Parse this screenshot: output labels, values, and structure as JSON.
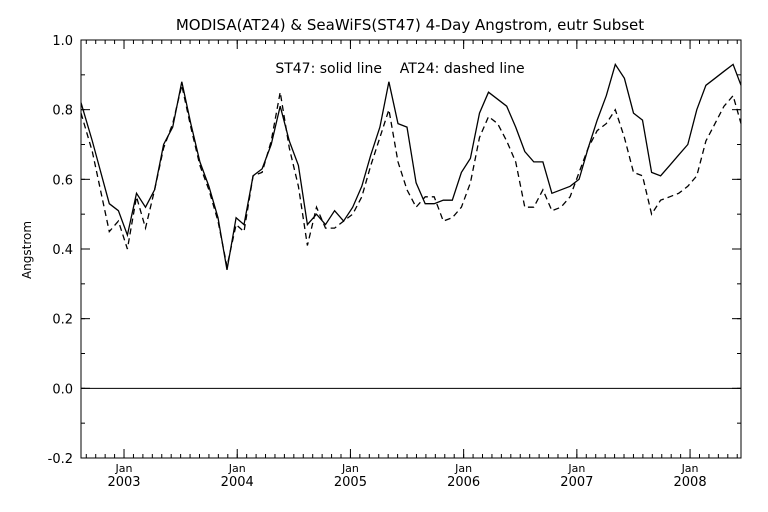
{
  "chart_data": {
    "type": "line",
    "title": "MODISA(AT24) & SeaWiFS(ST47) 4-Day Angstrom, eutr Subset",
    "annotation": "ST47: solid line    AT24: dashed line",
    "ylabel": "Angstrom",
    "xlabel": "",
    "ylim": [
      -0.2,
      1.0
    ],
    "xlim": [
      2002.62,
      2008.45
    ],
    "yticks": [
      -0.2,
      0.0,
      0.2,
      0.4,
      0.6,
      0.8,
      1.0
    ],
    "ytick_labels": [
      "-0.2",
      "0.0",
      "0.2",
      "0.4",
      "0.6",
      "0.8",
      "1.0"
    ],
    "xticks": [
      {
        "x": 2003,
        "month": "Jan",
        "year": "2003"
      },
      {
        "x": 2004,
        "month": "Jan",
        "year": "2004"
      },
      {
        "x": 2005,
        "month": "Jan",
        "year": "2005"
      },
      {
        "x": 2006,
        "month": "Jan",
        "year": "2006"
      },
      {
        "x": 2007,
        "month": "Jan",
        "year": "2007"
      },
      {
        "x": 2008,
        "month": "Jan",
        "year": "2008"
      }
    ],
    "reference_line": 0.0,
    "grid": false,
    "series": [
      {
        "name": "ST47",
        "style": "solid",
        "x": [
          2002.62,
          2002.72,
          2002.87,
          2002.95,
          2003.03,
          2003.11,
          2003.19,
          2003.27,
          2003.35,
          2003.43,
          2003.51,
          2003.59,
          2003.67,
          2003.75,
          2003.83,
          2003.91,
          2003.99,
          2004.06,
          2004.14,
          2004.22,
          2004.3,
          2004.38,
          2004.46,
          2004.54,
          2004.62,
          2004.7,
          2004.78,
          2004.86,
          2004.94,
          2005.02,
          2005.1,
          2005.18,
          2005.26,
          2005.34,
          2005.42,
          2005.5,
          2005.58,
          2005.66,
          2005.74,
          2005.82,
          2005.9,
          2005.98,
          2006.06,
          2006.14,
          2006.22,
          2006.3,
          2006.38,
          2006.46,
          2006.54,
          2006.62,
          2006.7,
          2006.78,
          2006.86,
          2006.94,
          2007.02,
          2007.1,
          2007.18,
          2007.26,
          2007.34,
          2007.42,
          2007.5,
          2007.58,
          2007.66,
          2007.74,
          2007.82,
          2007.9,
          2007.98,
          2008.06,
          2008.14,
          2008.22,
          2008.3,
          2008.38,
          2008.45
        ],
        "y": [
          0.82,
          0.71,
          0.53,
          0.51,
          0.44,
          0.56,
          0.52,
          0.57,
          0.7,
          0.75,
          0.88,
          0.76,
          0.65,
          0.58,
          0.49,
          0.34,
          0.49,
          0.47,
          0.61,
          0.63,
          0.7,
          0.81,
          0.71,
          0.64,
          0.47,
          0.5,
          0.47,
          0.51,
          0.48,
          0.52,
          0.58,
          0.67,
          0.75,
          0.88,
          0.76,
          0.75,
          0.59,
          0.53,
          0.53,
          0.54,
          0.54,
          0.62,
          0.66,
          0.79,
          0.85,
          0.83,
          0.81,
          0.75,
          0.68,
          0.65,
          0.65,
          0.56,
          0.57,
          0.58,
          0.6,
          0.69,
          0.77,
          0.84,
          0.93,
          0.89,
          0.79,
          0.77,
          0.62,
          0.61,
          0.64,
          0.67,
          0.7,
          0.8,
          0.87,
          0.89,
          0.91,
          0.93,
          0.87
        ]
      },
      {
        "name": "AT24",
        "style": "dashed",
        "x": [
          2002.62,
          2002.72,
          2002.87,
          2002.95,
          2003.03,
          2003.11,
          2003.19,
          2003.27,
          2003.35,
          2003.43,
          2003.51,
          2003.59,
          2003.67,
          2003.75,
          2003.83,
          2003.91,
          2003.99,
          2004.06,
          2004.14,
          2004.22,
          2004.3,
          2004.38,
          2004.46,
          2004.54,
          2004.62,
          2004.7,
          2004.78,
          2004.86,
          2004.94,
          2005.02,
          2005.1,
          2005.18,
          2005.26,
          2005.34,
          2005.42,
          2005.5,
          2005.58,
          2005.66,
          2005.74,
          2005.82,
          2005.9,
          2005.98,
          2006.06,
          2006.14,
          2006.22,
          2006.3,
          2006.38,
          2006.46,
          2006.54,
          2006.62,
          2006.7,
          2006.78,
          2006.86,
          2006.94,
          2007.02,
          2007.1,
          2007.18,
          2007.26,
          2007.34,
          2007.42,
          2007.5,
          2007.58,
          2007.66,
          2007.74,
          2007.82,
          2007.9,
          2007.98,
          2008.06,
          2008.14,
          2008.22,
          2008.3,
          2008.38,
          2008.45
        ],
        "y": [
          0.79,
          0.68,
          0.45,
          0.48,
          0.4,
          0.55,
          0.46,
          0.57,
          0.69,
          0.76,
          0.87,
          0.75,
          0.64,
          0.57,
          0.48,
          0.35,
          0.47,
          0.45,
          0.61,
          0.62,
          0.71,
          0.85,
          0.69,
          0.58,
          0.41,
          0.52,
          0.46,
          0.46,
          0.48,
          0.5,
          0.55,
          0.64,
          0.72,
          0.8,
          0.65,
          0.57,
          0.52,
          0.55,
          0.55,
          0.48,
          0.49,
          0.52,
          0.59,
          0.72,
          0.78,
          0.76,
          0.71,
          0.65,
          0.52,
          0.52,
          0.57,
          0.51,
          0.52,
          0.55,
          0.62,
          0.69,
          0.74,
          0.76,
          0.8,
          0.72,
          0.62,
          0.61,
          0.5,
          0.54,
          0.55,
          0.56,
          0.58,
          0.61,
          0.71,
          0.76,
          0.81,
          0.84,
          0.76
        ]
      }
    ]
  }
}
